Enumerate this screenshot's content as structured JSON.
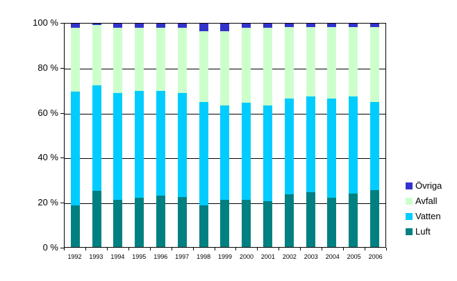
{
  "chart_data": {
    "type": "bar",
    "stacked": true,
    "percent_stacked": true,
    "title": "",
    "xlabel": "",
    "ylabel": "",
    "ylim": [
      0,
      100
    ],
    "grid": true,
    "gridline_color": "#000000",
    "background": "#ffffff",
    "y_ticks": [
      {
        "value": 100,
        "label": "100 %"
      },
      {
        "value": 80,
        "label": "80 %"
      },
      {
        "value": 60,
        "label": "60 %"
      },
      {
        "value": 40,
        "label": "40 %"
      },
      {
        "value": 20,
        "label": "20 %"
      },
      {
        "value": 0,
        "label": "0 %"
      }
    ],
    "categories": [
      "1992",
      "1993",
      "1994",
      "1995",
      "1996",
      "1997",
      "1998",
      "1999",
      "2000",
      "2001",
      "2002",
      "2003",
      "2004",
      "2005",
      "2006"
    ],
    "series": [
      {
        "name": "Luft",
        "color": "#008080",
        "values": [
          18.5,
          25,
          21,
          22,
          23,
          22.5,
          18.5,
          21,
          21,
          20.5,
          23.5,
          24.5,
          22,
          24,
          25.5
        ]
      },
      {
        "name": "Vatten",
        "color": "#00ccff",
        "values": [
          51,
          47.5,
          48,
          48,
          47,
          46.5,
          46.5,
          42.5,
          43.5,
          43,
          43,
          43,
          44.5,
          43.5,
          39.5
        ]
      },
      {
        "name": "Avfall",
        "color": "#ccffcc",
        "values": [
          28.5,
          27,
          29,
          28,
          28,
          29,
          31.5,
          33,
          33.5,
          34.5,
          32,
          31,
          32,
          31,
          33.5
        ]
      },
      {
        "name": "Övriga",
        "color": "#3333cc",
        "values": [
          2,
          0.5,
          2,
          2,
          2,
          2,
          3.5,
          3.5,
          2,
          2,
          1.5,
          1.5,
          1.5,
          1.5,
          1.5
        ]
      }
    ],
    "legend": {
      "position": "right-bottom",
      "items": [
        {
          "label": "Övriga",
          "color": "#3333cc"
        },
        {
          "label": "Avfall",
          "color": "#ccffcc"
        },
        {
          "label": "Vatten",
          "color": "#00ccff"
        },
        {
          "label": "Luft",
          "color": "#008080"
        }
      ]
    }
  }
}
